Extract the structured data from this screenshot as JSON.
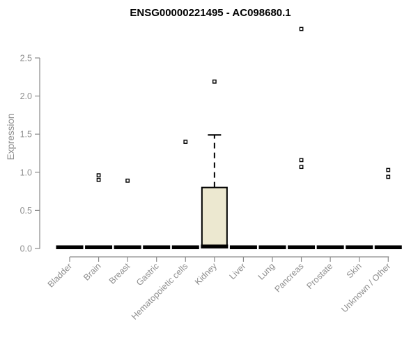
{
  "chart_data": {
    "type": "boxplot",
    "title": "ENSG00000221495 - AC098680.1",
    "ylabel": "Expression",
    "xlabel": "",
    "ylim": [
      0,
      2.5
    ],
    "yticks": [
      "0.0",
      "0.5",
      "1.0",
      "1.5",
      "2.0",
      "2.5"
    ],
    "grid": false,
    "legend": "none",
    "categories": [
      "Bladder",
      "Brain",
      "Breast",
      "Gastric",
      "Hematopoietic cells",
      "Kidney",
      "Liver",
      "Lung",
      "Pancreas",
      "Prostate",
      "Skin",
      "Unknown / Other"
    ],
    "boxes": [
      {
        "label": "Bladder",
        "q1": 0,
        "median": 0,
        "q3": 0,
        "whisker_low": 0,
        "whisker_high": 0,
        "outliers": []
      },
      {
        "label": "Brain",
        "q1": 0,
        "median": 0,
        "q3": 0,
        "whisker_low": 0,
        "whisker_high": 0,
        "outliers": [
          0.9,
          0.96
        ]
      },
      {
        "label": "Breast",
        "q1": 0,
        "median": 0,
        "q3": 0,
        "whisker_low": 0,
        "whisker_high": 0,
        "outliers": [
          0.89
        ]
      },
      {
        "label": "Gastric",
        "q1": 0,
        "median": 0,
        "q3": 0,
        "whisker_low": 0,
        "whisker_high": 0,
        "outliers": []
      },
      {
        "label": "Hematopoietic cells",
        "q1": 0,
        "median": 0,
        "q3": 0,
        "whisker_low": 0,
        "whisker_high": 0,
        "outliers": [
          1.4
        ]
      },
      {
        "label": "Kidney",
        "q1": 0.02,
        "median": 0.01,
        "q3": 0.8,
        "whisker_low": 0,
        "whisker_high": 1.49,
        "outliers": [
          2.19
        ]
      },
      {
        "label": "Liver",
        "q1": 0,
        "median": 0,
        "q3": 0,
        "whisker_low": 0,
        "whisker_high": 0,
        "outliers": []
      },
      {
        "label": "Lung",
        "q1": 0,
        "median": 0,
        "q3": 0,
        "whisker_low": 0,
        "whisker_high": 0,
        "outliers": []
      },
      {
        "label": "Pancreas",
        "q1": 0,
        "median": 0,
        "q3": 0,
        "whisker_low": 0,
        "whisker_high": 0,
        "outliers": [
          1.07,
          1.16,
          2.88
        ]
      },
      {
        "label": "Prostate",
        "q1": 0,
        "median": 0,
        "q3": 0,
        "whisker_low": 0,
        "whisker_high": 0,
        "outliers": []
      },
      {
        "label": "Skin",
        "q1": 0,
        "median": 0,
        "q3": 0,
        "whisker_low": 0,
        "whisker_high": 0,
        "outliers": []
      },
      {
        "label": "Unknown / Other",
        "q1": 0,
        "median": 0,
        "q3": 0,
        "whisker_low": 0,
        "whisker_high": 0,
        "outliers": [
          0.94,
          1.03
        ]
      }
    ],
    "colors": {
      "box_fill": "#ece8d0",
      "box_border": "#000000",
      "median": "#000000",
      "outlier_stroke": "#000000",
      "outlier_fill": "#ffffff",
      "axis": "#8a8a8a",
      "tick_text": "#8e8e8e",
      "title": "#000000"
    }
  }
}
